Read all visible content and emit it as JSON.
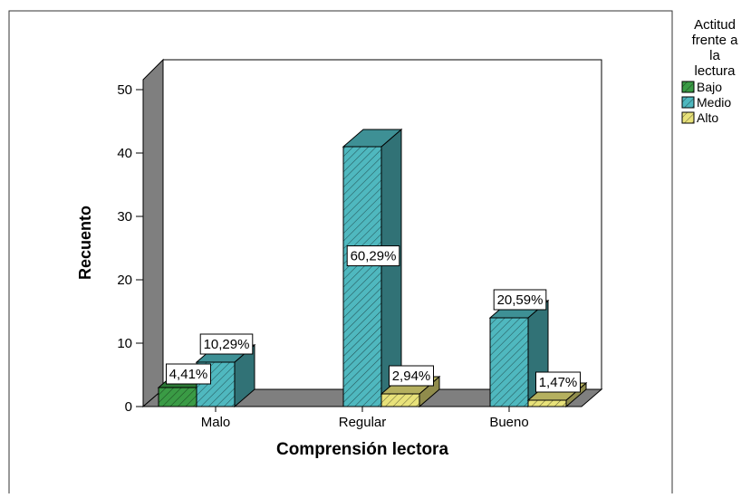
{
  "chart_data": {
    "type": "bar",
    "title": "",
    "xlabel": "Comprensión lectora",
    "ylabel": "Recuento",
    "categories": [
      "Malo",
      "Regular",
      "Bueno"
    ],
    "ylim": [
      0,
      50
    ],
    "yticks": [
      0,
      10,
      20,
      30,
      40,
      50
    ],
    "grid": false,
    "legend": {
      "title_lines": [
        "Actitud",
        "frente a",
        "la",
        "lectura"
      ],
      "placement": "right"
    },
    "series": [
      {
        "name": "Bajo",
        "color": "#3a9b45",
        "values": [
          3,
          0,
          0
        ],
        "labels": [
          "4,41%",
          "",
          ""
        ]
      },
      {
        "name": "Medio",
        "color": "#4fb8bf",
        "values": [
          7,
          41,
          14
        ],
        "labels": [
          "10,29%",
          "60,29%",
          "20,59%"
        ]
      },
      {
        "name": "Alto",
        "color": "#e8e27a",
        "values": [
          0,
          2,
          1
        ],
        "labels": [
          "",
          "2,94%",
          "1,47%"
        ]
      }
    ]
  }
}
